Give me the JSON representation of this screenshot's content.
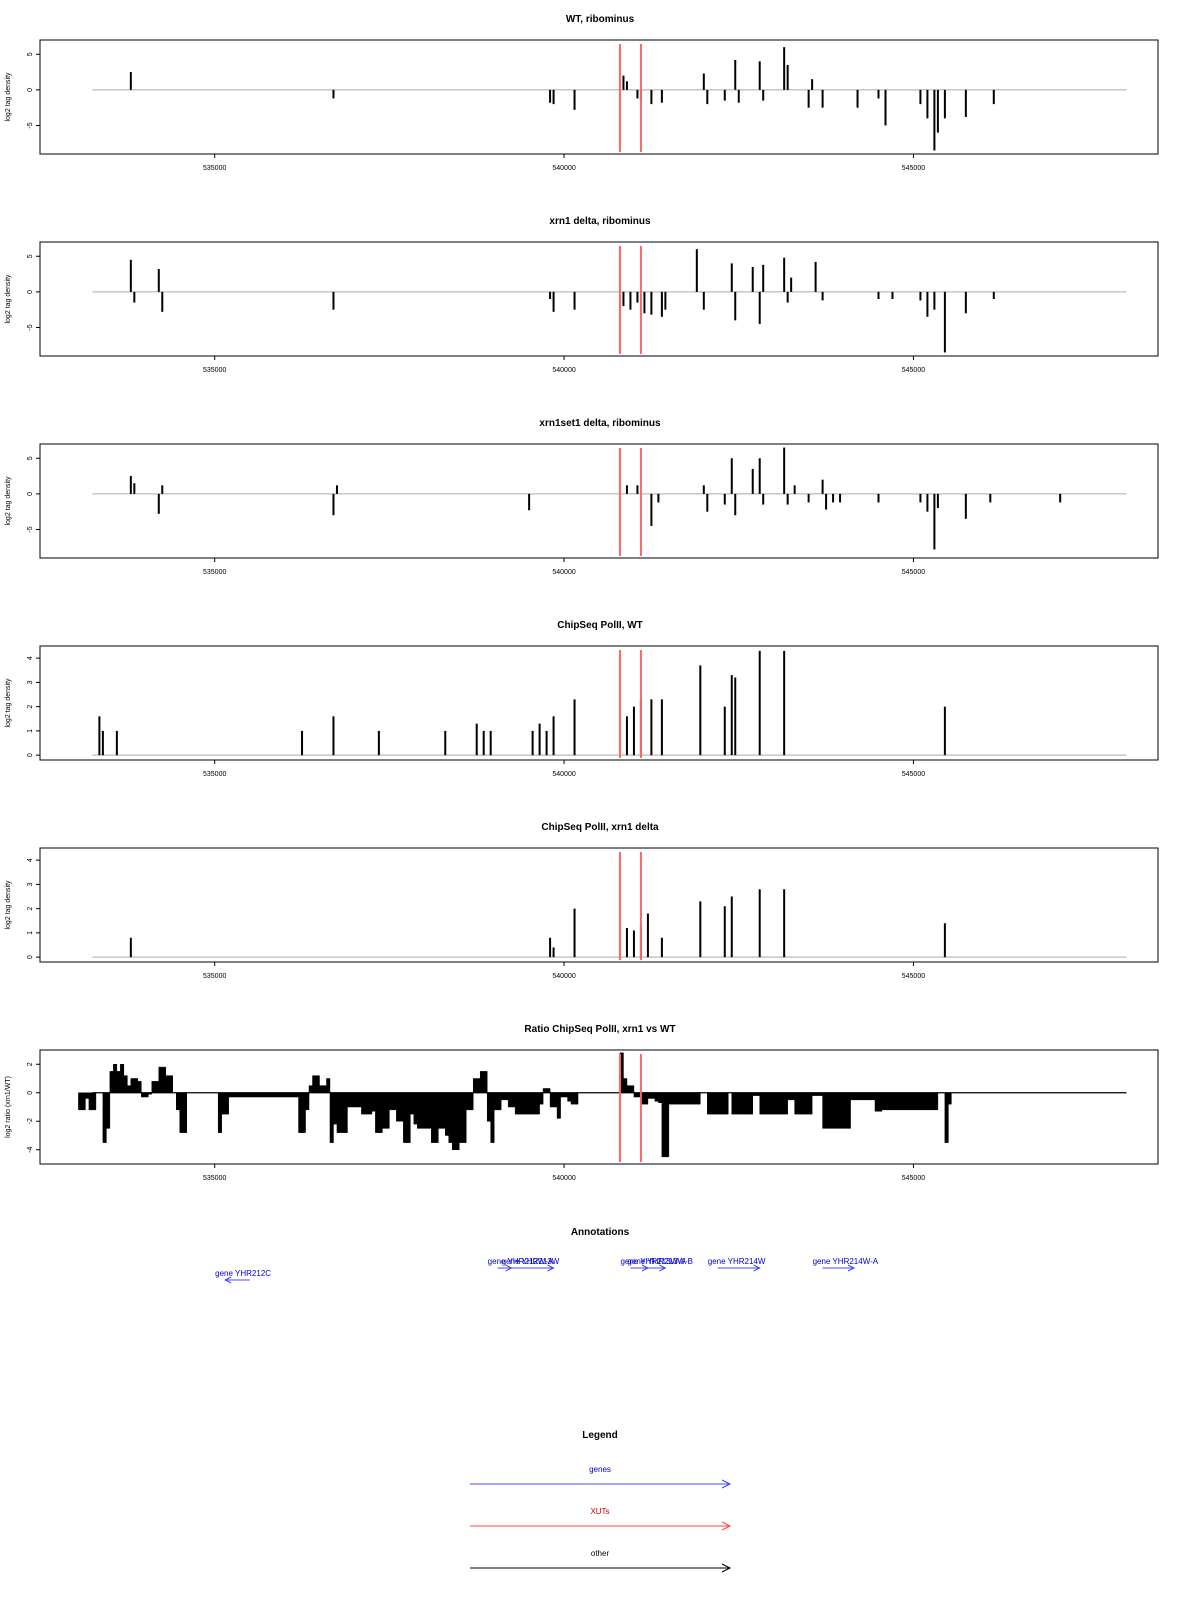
{
  "colors": {
    "axis": "#000000",
    "baseline": "#aaaaaa",
    "bars": "#000000",
    "marker": "#ff6666",
    "gene": "#0000cc",
    "gene_arrow": "#4444ff",
    "xut": "#cc0000",
    "xut_arrow": "#ff4444",
    "other": "#000000"
  },
  "chart_data": [
    {
      "type": "bar",
      "title": "WT, ribominus",
      "ylabel": "log2 tag density",
      "xlim": [
        532500,
        548500
      ],
      "ylim": [
        -9,
        7
      ],
      "yticks": [
        5,
        0,
        -5
      ],
      "ytick_labels": [
        "5",
        "0",
        "-5"
      ],
      "xticks": [
        535000,
        540000,
        545000
      ],
      "xtick_labels": [
        "535000",
        "540000",
        "545000"
      ],
      "baseline": 0,
      "markers": [
        540800,
        541100
      ],
      "bars": [
        [
          533800,
          2.5
        ],
        [
          536700,
          -1.2
        ],
        [
          539800,
          -1.8
        ],
        [
          539850,
          -2
        ],
        [
          540150,
          -2.8
        ],
        [
          540850,
          2
        ],
        [
          540900,
          1.2
        ],
        [
          541050,
          -1.2
        ],
        [
          541100,
          -1.5
        ],
        [
          541250,
          -2
        ],
        [
          541400,
          -1.8
        ],
        [
          542000,
          2.3
        ],
        [
          542050,
          -2
        ],
        [
          542300,
          -1.5
        ],
        [
          542450,
          4.2
        ],
        [
          542500,
          -1.8
        ],
        [
          542800,
          4
        ],
        [
          542850,
          -1.5
        ],
        [
          543150,
          6
        ],
        [
          543200,
          3.5
        ],
        [
          543500,
          -2.5
        ],
        [
          543550,
          1.5
        ],
        [
          543700,
          -2.5
        ],
        [
          544200,
          -2.5
        ],
        [
          544500,
          -1.2
        ],
        [
          544600,
          -5
        ],
        [
          545100,
          -2
        ],
        [
          545200,
          -4
        ],
        [
          545300,
          -8.5
        ],
        [
          545350,
          -6
        ],
        [
          545450,
          -4
        ],
        [
          545750,
          -3.8
        ],
        [
          546150,
          -2
        ]
      ]
    },
    {
      "type": "bar",
      "title": "xrn1 delta, ribominus",
      "ylabel": "log2 tag density",
      "xlim": [
        532500,
        548500
      ],
      "ylim": [
        -9,
        7
      ],
      "yticks": [
        5,
        0,
        -5
      ],
      "ytick_labels": [
        "5",
        "0",
        "-5"
      ],
      "xticks": [
        535000,
        540000,
        545000
      ],
      "xtick_labels": [
        "535000",
        "540000",
        "545000"
      ],
      "baseline": 0,
      "markers": [
        540800,
        541100
      ],
      "bars": [
        [
          533800,
          4.5
        ],
        [
          533850,
          -1.5
        ],
        [
          534200,
          3.2
        ],
        [
          534250,
          -2.8
        ],
        [
          536700,
          -2.5
        ],
        [
          539800,
          -1
        ],
        [
          539850,
          -2.8
        ],
        [
          540150,
          -2.5
        ],
        [
          540850,
          -2
        ],
        [
          540950,
          -2.5
        ],
        [
          541050,
          -1.5
        ],
        [
          541150,
          -3
        ],
        [
          541250,
          -3.2
        ],
        [
          541400,
          -3.5
        ],
        [
          541450,
          -2.5
        ],
        [
          541900,
          6
        ],
        [
          542000,
          -2.5
        ],
        [
          542400,
          4
        ],
        [
          542450,
          -4
        ],
        [
          542700,
          3.5
        ],
        [
          542800,
          -4.5
        ],
        [
          542850,
          3.8
        ],
        [
          543150,
          4.8
        ],
        [
          543200,
          -1.5
        ],
        [
          543250,
          2
        ],
        [
          543600,
          4.2
        ],
        [
          543700,
          -1.2
        ],
        [
          544500,
          -1
        ],
        [
          544700,
          -1
        ],
        [
          545100,
          -1.2
        ],
        [
          545200,
          -3.5
        ],
        [
          545300,
          -2.5
        ],
        [
          545450,
          -8.5
        ],
        [
          545750,
          -3
        ],
        [
          546150,
          -1
        ]
      ]
    },
    {
      "type": "bar",
      "title": "xrn1set1 delta, ribominus",
      "ylabel": "log2 tag density",
      "xlim": [
        532500,
        548500
      ],
      "ylim": [
        -9,
        7
      ],
      "yticks": [
        5,
        0,
        -5
      ],
      "ytick_labels": [
        "5",
        "0",
        "-5"
      ],
      "xticks": [
        535000,
        540000,
        545000
      ],
      "xtick_labels": [
        "535000",
        "540000",
        "545000"
      ],
      "baseline": 0,
      "markers": [
        540800,
        541100
      ],
      "bars": [
        [
          533800,
          2.5
        ],
        [
          533850,
          1.5
        ],
        [
          534200,
          -2.8
        ],
        [
          534250,
          1.2
        ],
        [
          536700,
          -3
        ],
        [
          536750,
          1.2
        ],
        [
          539500,
          -2.3
        ],
        [
          540900,
          1.2
        ],
        [
          541050,
          1.2
        ],
        [
          541250,
          -4.5
        ],
        [
          541350,
          -1.2
        ],
        [
          542000,
          1.2
        ],
        [
          542050,
          -2.5
        ],
        [
          542300,
          -1.5
        ],
        [
          542400,
          5
        ],
        [
          542450,
          -3
        ],
        [
          542700,
          3.5
        ],
        [
          542800,
          5
        ],
        [
          542850,
          -1.5
        ],
        [
          543150,
          6.5
        ],
        [
          543200,
          -1.5
        ],
        [
          543300,
          1.2
        ],
        [
          543500,
          -1.2
        ],
        [
          543700,
          2
        ],
        [
          543750,
          -2.2
        ],
        [
          543850,
          -1.2
        ],
        [
          543950,
          -1.2
        ],
        [
          544500,
          -1.2
        ],
        [
          545100,
          -1.2
        ],
        [
          545200,
          -2.5
        ],
        [
          545300,
          -7.8
        ],
        [
          545350,
          -2
        ],
        [
          545750,
          -3.5
        ],
        [
          546100,
          -1.2
        ],
        [
          547100,
          -1.2
        ]
      ]
    },
    {
      "type": "bar",
      "title": "ChipSeq PolII, WT",
      "ylabel": "log2 tag density",
      "xlim": [
        532500,
        548500
      ],
      "ylim": [
        -0.2,
        4.5
      ],
      "yticks": [
        0,
        1,
        2,
        3,
        4
      ],
      "ytick_labels": [
        "0",
        "1",
        "2",
        "3",
        "4"
      ],
      "xticks": [
        535000,
        540000,
        545000
      ],
      "xtick_labels": [
        "535000",
        "540000",
        "545000"
      ],
      "baseline": 0,
      "markers": [
        540800,
        541100
      ],
      "bars": [
        [
          533350,
          1.6
        ],
        [
          533400,
          1
        ],
        [
          533600,
          1
        ],
        [
          536250,
          1
        ],
        [
          536700,
          1.6
        ],
        [
          537350,
          1
        ],
        [
          538300,
          1
        ],
        [
          538750,
          1.3
        ],
        [
          538850,
          1
        ],
        [
          538950,
          1
        ],
        [
          539550,
          1
        ],
        [
          539650,
          1.3
        ],
        [
          539750,
          1
        ],
        [
          539850,
          1.6
        ],
        [
          540150,
          2.3
        ],
        [
          540900,
          1.6
        ],
        [
          541000,
          2
        ],
        [
          541100,
          2.3
        ],
        [
          541250,
          2.3
        ],
        [
          541400,
          2.3
        ],
        [
          541950,
          3.7
        ],
        [
          542300,
          2
        ],
        [
          542400,
          3.3
        ],
        [
          542450,
          3.2
        ],
        [
          542800,
          4.3
        ],
        [
          543150,
          4.3
        ],
        [
          545450,
          2
        ]
      ]
    },
    {
      "type": "bar",
      "title": "ChipSeq PolII, xrn1 delta",
      "ylabel": "log2 tag density",
      "xlim": [
        532500,
        548500
      ],
      "ylim": [
        -0.2,
        4.5
      ],
      "yticks": [
        0,
        1,
        2,
        3,
        4
      ],
      "ytick_labels": [
        "0",
        "1",
        "2",
        "3",
        "4"
      ],
      "xticks": [
        535000,
        540000,
        545000
      ],
      "xtick_labels": [
        "535000",
        "540000",
        "545000"
      ],
      "baseline": 0,
      "markers": [
        540800,
        541100
      ],
      "bars": [
        [
          533800,
          0.8
        ],
        [
          539800,
          0.8
        ],
        [
          539850,
          0.4
        ],
        [
          540150,
          2
        ],
        [
          540900,
          1.2
        ],
        [
          541000,
          1.1
        ],
        [
          541100,
          1.3
        ],
        [
          541200,
          1.8
        ],
        [
          541400,
          0.8
        ],
        [
          541950,
          2.3
        ],
        [
          542300,
          2.1
        ],
        [
          542400,
          2.5
        ],
        [
          542800,
          2.8
        ],
        [
          543150,
          2.8
        ],
        [
          545450,
          1.4
        ]
      ]
    },
    {
      "type": "area",
      "title": "Ratio ChipSeq PolII, xrn1 vs WT",
      "ylabel": "log2 ratio (xrn1/WT)",
      "xlim": [
        532500,
        548500
      ],
      "ylim": [
        -5,
        3
      ],
      "yticks": [
        2,
        0,
        -2,
        -4
      ],
      "ytick_labels": [
        "2",
        "0",
        "-2",
        "-4"
      ],
      "xticks": [
        535000,
        540000,
        545000
      ],
      "xtick_labels": [
        "535000",
        "540000",
        "545000"
      ],
      "baseline": 0,
      "markers": [
        540800,
        541100
      ],
      "x": [
        533050,
        533150,
        533200,
        533300,
        533400,
        533450,
        533500,
        533550,
        533600,
        533650,
        533700,
        533750,
        533800,
        533900,
        533950,
        534050,
        534100,
        534200,
        534300,
        534400,
        534450,
        534500,
        534600,
        535050,
        535100,
        535200,
        536200,
        536300,
        536350,
        536400,
        536500,
        536600,
        536650,
        536700,
        536750,
        536800,
        536900,
        537100,
        537250,
        537300,
        537400,
        537500,
        537550,
        537600,
        537700,
        537800,
        537850,
        537900,
        538000,
        538100,
        538200,
        538300,
        538350,
        538400,
        538500,
        538600,
        538700,
        538800,
        538900,
        538950,
        539000,
        539100,
        539200,
        539300,
        539450,
        539550,
        539650,
        539700,
        539800,
        539900,
        539950,
        540050,
        540100,
        540200,
        540800,
        540850,
        540900,
        541000,
        541100,
        541200,
        541300,
        541350,
        541400,
        541500,
        541950,
        542050,
        542350,
        542400,
        542500,
        542700,
        542800,
        543200,
        543300,
        543550,
        543700,
        544100,
        544450,
        544550,
        545350,
        545450,
        545500
      ],
      "values": [
        -1.2,
        -0.4,
        -1.2,
        0,
        -3.5,
        -2.5,
        1.5,
        2,
        1.5,
        2,
        1.2,
        0.5,
        1,
        0.8,
        -0.3,
        -0.1,
        0.8,
        1.8,
        1.2,
        0,
        -1.2,
        -2.8,
        0,
        -2.8,
        -1.5,
        -0.3,
        -2.8,
        -1.2,
        0.5,
        1.2,
        0.5,
        1,
        -3.5,
        -2.2,
        -2.8,
        -2.8,
        -1,
        -1.5,
        -1.3,
        -2.8,
        -2.5,
        -1.2,
        -1.2,
        -2,
        -3.5,
        -1.5,
        -2.2,
        -2.5,
        -2.5,
        -3.5,
        -2.5,
        -3,
        -3.5,
        -4,
        -3.5,
        -1.2,
        1,
        1.5,
        -2,
        -3.5,
        -1.2,
        -0.5,
        -1,
        -1.5,
        -1.5,
        -1.5,
        -0.8,
        0.3,
        -1,
        -1.8,
        -0.3,
        -0.6,
        -0.8,
        0,
        2.8,
        1,
        0.5,
        -0.3,
        -0.8,
        -0.4,
        -0.6,
        -0.7,
        -4.5,
        -0.8,
        0,
        -1.5,
        0,
        -1.5,
        -1.5,
        -0.2,
        -1.5,
        -0.5,
        -1.5,
        -0.2,
        -2.5,
        -0.5,
        -1.3,
        -1.2,
        0,
        -3.5,
        -0.8
      ]
    }
  ],
  "annotations": {
    "title": "Annotations",
    "features": [
      {
        "label": "gene YHR212C",
        "start": 535150,
        "end": 535500,
        "strand": "-",
        "row": 1
      },
      {
        "label": "gene YHR212W-A",
        "start": 539050,
        "end": 539250,
        "strand": "+",
        "row": 0
      },
      {
        "label": "gene YHR213W",
        "start": 539250,
        "end": 539850,
        "strand": "+",
        "row": 0
      },
      {
        "label": "gene YHR213W-A",
        "start": 540950,
        "end": 541200,
        "strand": "+",
        "row": 0
      },
      {
        "label": "gene YHR213W-B",
        "start": 541050,
        "end": 541450,
        "strand": "+",
        "row": 0
      },
      {
        "label": "gene YHR214W",
        "start": 542200,
        "end": 542800,
        "strand": "+",
        "row": 0
      },
      {
        "label": "gene YHR214W-A",
        "start": 543700,
        "end": 544150,
        "strand": "+",
        "row": 0
      }
    ]
  },
  "legend": {
    "title": "Legend",
    "items": [
      {
        "label": "genes",
        "key": "gene"
      },
      {
        "label": "XUTs",
        "key": "xut"
      },
      {
        "label": "other",
        "key": "other"
      }
    ]
  }
}
